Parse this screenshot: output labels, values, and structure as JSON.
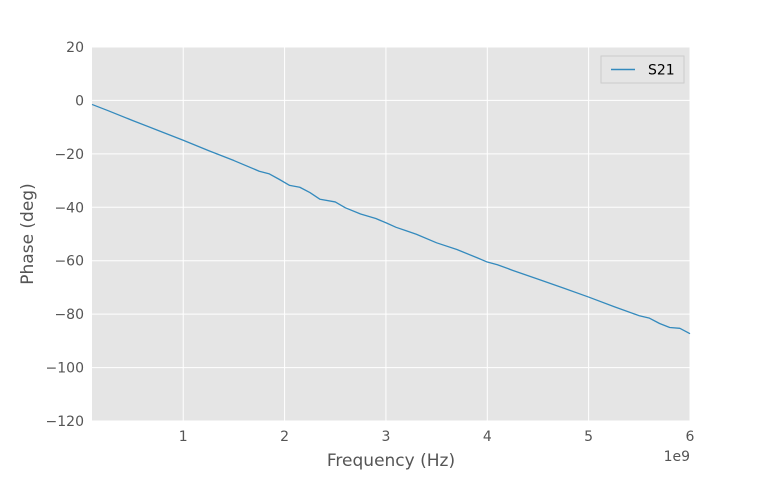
{
  "chart_data": {
    "type": "line",
    "title": "",
    "xlabel": "Frequency (Hz)",
    "ylabel": "Phase (deg)",
    "x_offset_label": "1e9",
    "xlim": [
      100000000,
      6000000000
    ],
    "ylim": [
      -120,
      20
    ],
    "x_ticks": [
      1000000000,
      2000000000,
      3000000000,
      4000000000,
      5000000000,
      6000000000
    ],
    "x_tick_labels": [
      "1",
      "2",
      "3",
      "4",
      "5",
      "6"
    ],
    "y_ticks": [
      -120,
      -100,
      -80,
      -60,
      -40,
      -20,
      0,
      20
    ],
    "y_tick_labels": [
      "−120",
      "−100",
      "−80",
      "−60",
      "−40",
      "−20",
      "0",
      "20"
    ],
    "grid": true,
    "legend_position": "top-right",
    "colors": {
      "S21": "#348ABD",
      "background": "#E5E5E5",
      "grid": "#FFFFFF"
    },
    "series": [
      {
        "name": "S21",
        "x": [
          100000000,
          250000000,
          500000000,
          750000000,
          1000000000,
          1250000000,
          1500000000,
          1750000000,
          1850000000,
          1950000000,
          2050000000,
          2150000000,
          2250000000,
          2350000000,
          2500000000,
          2600000000,
          2750000000,
          2900000000,
          3000000000,
          3100000000,
          3200000000,
          3300000000,
          3500000000,
          3700000000,
          3900000000,
          4000000000,
          4100000000,
          4250000000,
          4500000000,
          4750000000,
          5000000000,
          5250000000,
          5500000000,
          5600000000,
          5700000000,
          5800000000,
          5900000000,
          6000000000
        ],
        "y": [
          -1.5,
          -3.7,
          -7.5,
          -11.2,
          -14.9,
          -18.8,
          -22.5,
          -26.5,
          -27.5,
          -29.6,
          -31.8,
          -32.5,
          -34.5,
          -37.0,
          -38.0,
          -40.2,
          -42.5,
          -44.2,
          -45.8,
          -47.5,
          -48.8,
          -50.1,
          -53.3,
          -55.8,
          -58.9,
          -60.5,
          -61.5,
          -63.6,
          -66.9,
          -70.2,
          -73.6,
          -77.2,
          -80.6,
          -81.5,
          -83.5,
          -85.0,
          -85.3,
          -87.3
        ]
      }
    ]
  }
}
